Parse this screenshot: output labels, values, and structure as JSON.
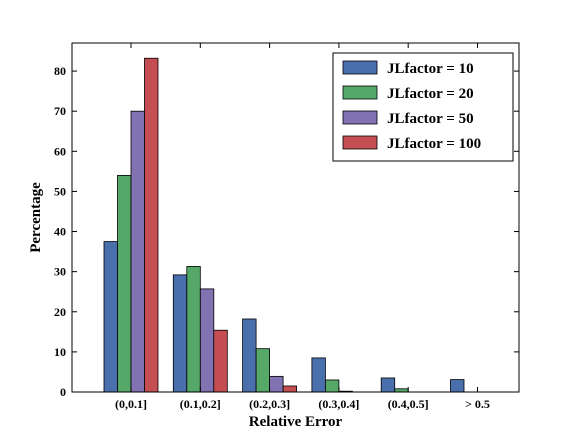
{
  "chart_data": {
    "type": "bar",
    "xlabel": "Relative Error",
    "ylabel": "Percentage",
    "ylim": [
      0,
      87
    ],
    "yticks": [
      0,
      10,
      20,
      30,
      40,
      50,
      60,
      70,
      80
    ],
    "categories": [
      "(0,0.1]",
      "(0.1,0.2]",
      "(0.2,0.3]",
      "(0.3,0.4]",
      "(0.4,0.5]",
      "> 0.5"
    ],
    "series": [
      {
        "name": "JLfactor = 10",
        "color": "#4a6fad",
        "values": [
          37.5,
          29.2,
          18.2,
          8.5,
          3.5,
          3.1
        ]
      },
      {
        "name": "JLfactor = 20",
        "color": "#55a868",
        "values": [
          54.0,
          31.3,
          10.8,
          3.0,
          0.8,
          0.0
        ]
      },
      {
        "name": "JLfactor = 50",
        "color": "#8172b2",
        "values": [
          70.0,
          25.7,
          3.9,
          0.2,
          0.0,
          0.0
        ]
      },
      {
        "name": "JLfactor = 100",
        "color": "#c44e52",
        "values": [
          83.2,
          15.4,
          1.5,
          0.0,
          0.0,
          0.0
        ]
      }
    ],
    "legend_position": "top-right",
    "grid": false
  }
}
